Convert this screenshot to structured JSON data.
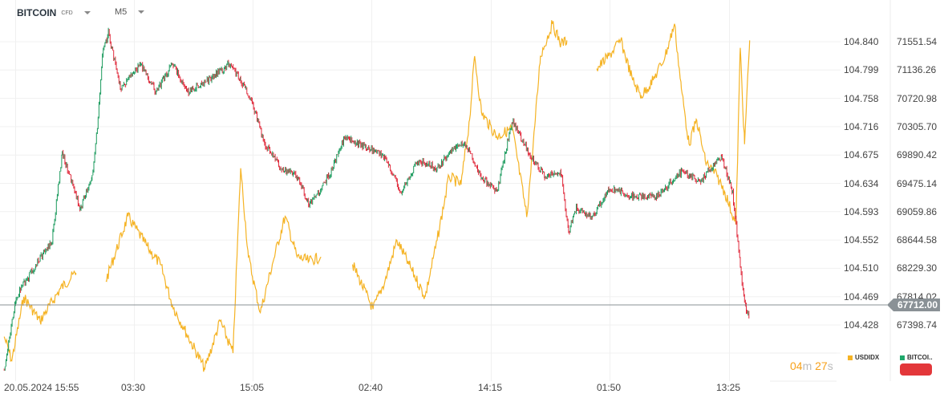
{
  "header": {
    "symbol": "BITCOIN",
    "symbol_type": "CFD",
    "timeframe": "M5"
  },
  "current_price": "67712.00",
  "timer": {
    "minutes": "04",
    "minutes_unit": "m",
    "seconds": "27",
    "seconds_unit": "s"
  },
  "legend": [
    {
      "label": "USDIDX",
      "color": "#f5b324"
    },
    {
      "label": "BITCOI..",
      "color": "#1fa86b"
    }
  ],
  "colors": {
    "up": "#1a9a5c",
    "down": "#e0283a",
    "usdidx": "#f5b324",
    "price_line": "#8a9196",
    "action_button": "#e3373a"
  },
  "chart_data": {
    "type": "line",
    "grid": true,
    "x_ticks": [
      "20.05.2024 15:55",
      "03:30",
      "15:05",
      "02:40",
      "14:15",
      "01:50",
      "13:25"
    ],
    "y_ticks_usdidx": [
      "104.840",
      "104.799",
      "104.758",
      "104.716",
      "104.675",
      "104.634",
      "104.593",
      "104.552",
      "104.510",
      "104.469",
      "104.428"
    ],
    "y_ticks_bitcoin": [
      "71551.54",
      "71136.26",
      "70720.98",
      "70305.70",
      "69890.42",
      "69475.14",
      "69059.86",
      "68644.58",
      "68229.30",
      "67814.02",
      "67398.74"
    ],
    "series": [
      {
        "name": "BITCOI..",
        "style": "candlestick",
        "axis": "right",
        "points": [
          [
            "05-20 14:50",
            66752
          ],
          [
            "05-20 16:00",
            67810
          ],
          [
            "05-20 17:55",
            68281
          ],
          [
            "05-20 19:30",
            68634
          ],
          [
            "05-20 20:30",
            69928
          ],
          [
            "05-20 22:15",
            69104
          ],
          [
            "05-20 23:25",
            69575
          ],
          [
            "05-21 00:00",
            70399
          ],
          [
            "05-21 00:25",
            71340
          ],
          [
            "05-21 01:00",
            71693
          ],
          [
            "05-21 02:10",
            70869
          ],
          [
            "05-21 04:10",
            71222
          ],
          [
            "05-21 05:40",
            70810
          ],
          [
            "05-21 07:15",
            71222
          ],
          [
            "05-21 08:50",
            70810
          ],
          [
            "05-21 10:45",
            70987
          ],
          [
            "05-21 12:45",
            71222
          ],
          [
            "05-21 13:55",
            70987
          ],
          [
            "05-21 15:05",
            70634
          ],
          [
            "05-21 16:15",
            70046
          ],
          [
            "05-21 17:50",
            69693
          ],
          [
            "05-21 19:25",
            69575
          ],
          [
            "05-21 20:35",
            69163
          ],
          [
            "05-21 22:30",
            69575
          ],
          [
            "05-22 00:05",
            70163
          ],
          [
            "05-22 02:25",
            69987
          ],
          [
            "05-22 04:00",
            69869
          ],
          [
            "05-22 05:35",
            69340
          ],
          [
            "05-22 07:10",
            69810
          ],
          [
            "05-22 09:05",
            69693
          ],
          [
            "05-22 10:40",
            69987
          ],
          [
            "05-22 11:50",
            70046
          ],
          [
            "05-22 13:25",
            69575
          ],
          [
            "05-22 14:55",
            69340
          ],
          [
            "05-22 16:25",
            70399
          ],
          [
            "05-22 18:00",
            69928
          ],
          [
            "05-22 19:35",
            69575
          ],
          [
            "05-22 21:10",
            69634
          ],
          [
            "05-22 21:55",
            68752
          ],
          [
            "05-22 22:40",
            69104
          ],
          [
            "05-23 00:15",
            68987
          ],
          [
            "05-23 01:50",
            69399
          ],
          [
            "05-23 04:10",
            69281
          ],
          [
            "05-23 06:30",
            69281
          ],
          [
            "05-23 08:55",
            69634
          ],
          [
            "05-23 10:50",
            69516
          ],
          [
            "05-23 12:50",
            69869
          ],
          [
            "05-23 13:55",
            69340
          ],
          [
            "05-23 14:40",
            68281
          ],
          [
            "05-23 15:05",
            67693
          ],
          [
            "05-23 15:35",
            67516
          ]
        ]
      },
      {
        "name": "USDIDX",
        "style": "line",
        "axis": "left",
        "points": [
          [
            "05-20 14:50",
            104.411
          ],
          [
            "05-20 15:35",
            104.376
          ],
          [
            "05-20 16:45",
            104.469
          ],
          [
            "05-20 18:20",
            104.434
          ],
          [
            "05-20 20:20",
            104.481
          ],
          [
            "05-20 21:50",
            104.504
          ],
          null,
          [
            "05-21 00:45",
            104.492
          ],
          [
            "05-21 02:55",
            104.586
          ],
          [
            "05-21 04:55",
            104.539
          ],
          [
            "05-21 06:05",
            104.516
          ],
          [
            "05-21 07:15",
            104.457
          ],
          [
            "05-21 08:25",
            104.422
          ],
          [
            "05-21 10:25",
            104.364
          ],
          [
            "05-21 11:55",
            104.434
          ],
          [
            "05-21 13:10",
            104.387
          ],
          [
            "05-21 13:55",
            104.656
          ],
          [
            "05-21 14:40",
            104.527
          ],
          [
            "05-21 15:50",
            104.446
          ],
          [
            "05-21 17:00",
            104.516
          ],
          [
            "05-21 18:15",
            104.586
          ],
          [
            "05-21 19:25",
            104.527
          ],
          [
            "05-21 20:35",
            104.521
          ],
          [
            "05-21 21:45",
            104.527
          ],
          null,
          [
            "05-22 00:50",
            104.516
          ],
          [
            "05-22 02:50",
            104.451
          ],
          [
            "05-22 04:00",
            104.492
          ],
          [
            "05-22 05:10",
            104.551
          ],
          [
            "05-22 06:20",
            104.516
          ],
          [
            "05-22 07:55",
            104.469
          ],
          [
            "05-22 09:05",
            104.551
          ],
          [
            "05-22 10:15",
            104.644
          ],
          [
            "05-22 11:25",
            104.632
          ],
          [
            "05-22 12:15",
            104.726
          ],
          [
            "05-22 12:45",
            104.819
          ],
          [
            "05-22 13:25",
            104.737
          ],
          [
            "05-22 14:55",
            104.702
          ],
          [
            "05-22 16:25",
            104.714
          ],
          [
            "05-22 17:50",
            104.586
          ],
          [
            "05-22 18:40",
            104.726
          ],
          [
            "05-22 19:10",
            104.819
          ],
          [
            "05-22 20:20",
            104.866
          ],
          [
            "05-22 21:10",
            104.837
          ],
          [
            "05-22 21:45",
            104.842
          ],
          null,
          [
            "05-23 00:40",
            104.801
          ],
          [
            "05-23 01:50",
            104.819
          ],
          [
            "05-23 03:00",
            104.842
          ],
          [
            "05-23 04:10",
            104.784
          ],
          [
            "05-23 05:00",
            104.761
          ],
          [
            "05-23 06:10",
            104.784
          ],
          [
            "05-23 07:20",
            104.819
          ],
          [
            "05-23 08:15",
            104.866
          ],
          [
            "05-23 08:55",
            104.772
          ],
          [
            "05-23 09:40",
            104.691
          ],
          [
            "05-23 10:25",
            104.726
          ],
          [
            "05-23 11:15",
            104.667
          ],
          [
            "05-23 12:25",
            104.644
          ],
          [
            "05-23 13:10",
            104.621
          ],
          [
            "05-23 14:15",
            104.574
          ],
          [
            "05-23 14:40",
            104.831
          ],
          [
            "05-23 15:05",
            104.691
          ],
          [
            "05-23 15:35",
            104.842
          ]
        ]
      }
    ]
  }
}
